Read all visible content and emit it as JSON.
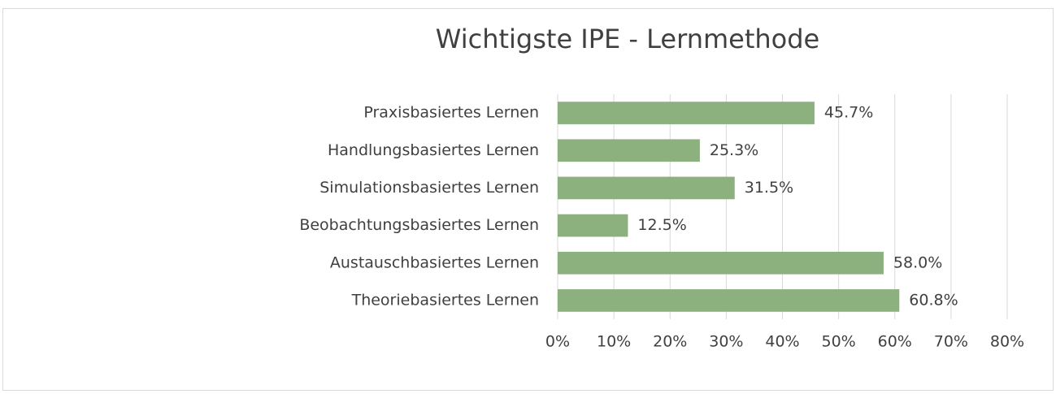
{
  "chart_data": {
    "type": "hbar",
    "title": "Wichtigste IPE - Lernmethode",
    "categories": [
      "Praxisbasiertes Lernen",
      "Handlungsbasiertes Lernen",
      "Simulationsbasiertes Lernen",
      "Beobachtungsbasiertes Lernen",
      "Austauschbasiertes Lernen",
      "Theoriebasiertes Lernen"
    ],
    "values": [
      45.7,
      25.3,
      31.5,
      12.5,
      58.0,
      60.8
    ],
    "value_labels": [
      "45.7%",
      "25.3%",
      "31.5%",
      "12.5%",
      "58.0%",
      "60.8%"
    ],
    "color": "#8db07f",
    "xlim": [
      0,
      80
    ],
    "xticks": [
      {
        "value": 0,
        "label": "0%"
      },
      {
        "value": 10,
        "label": "10%"
      },
      {
        "value": 20,
        "label": "20%"
      },
      {
        "value": 30,
        "label": "30%"
      },
      {
        "value": 40,
        "label": "40%"
      },
      {
        "value": 50,
        "label": "50%"
      },
      {
        "value": 60,
        "label": "60%"
      },
      {
        "value": 70,
        "label": "70%"
      },
      {
        "value": 80,
        "label": "80%"
      }
    ],
    "grid": true
  }
}
